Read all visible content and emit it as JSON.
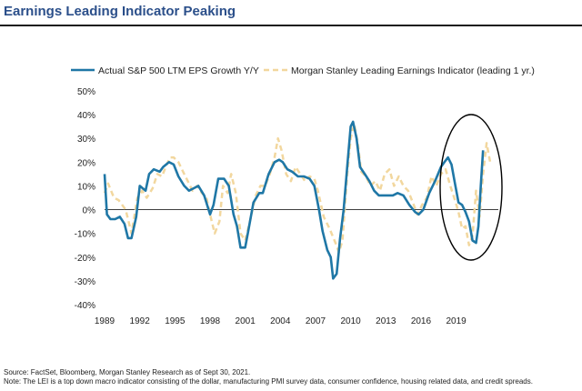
{
  "header": {
    "title": "Earnings Leading Indicator Peaking"
  },
  "colors": {
    "actual": "#1f77a6",
    "lei": "#f2d79e",
    "title": "#2b4f8a",
    "ellipse": "#000000"
  },
  "notes": {
    "source": "Source: FactSet, Bloomberg, Morgan Stanley Research as of Sept 30, 2021.",
    "note": "Note: The LEI is a top down macro indicator consisting of the dollar, manufacturing PMI survey data, consumer confidence, housing related data, and credit spreads."
  },
  "chart_data": {
    "type": "line",
    "title": "",
    "xlabel": "",
    "ylabel": "",
    "xlim": [
      1989,
      2022.6
    ],
    "ylim": [
      -40,
      50
    ],
    "x_ticks": [
      "1989",
      "1992",
      "1995",
      "1998",
      "2001",
      "2004",
      "2007",
      "2010",
      "2013",
      "2016",
      "2019"
    ],
    "x_tick_values": [
      1989,
      1992,
      1995,
      1998,
      2001,
      2004,
      2007,
      2010,
      2013,
      2016,
      2019
    ],
    "y_ticks": [
      "50%",
      "40%",
      "30%",
      "20%",
      "10%",
      "0%",
      "-10%",
      "-20%",
      "-30%",
      "-40%"
    ],
    "y_tick_values": [
      50,
      40,
      30,
      20,
      10,
      0,
      -10,
      -20,
      -30,
      -40
    ],
    "legend_position": "top",
    "annotation": "ellipse",
    "series": [
      {
        "name": "Actual S&P 500 LTM EPS Growth Y/Y",
        "style": "solid",
        "points": [
          [
            1989.0,
            15
          ],
          [
            1989.2,
            -2
          ],
          [
            1989.5,
            -4
          ],
          [
            1989.9,
            -4
          ],
          [
            1990.3,
            -3
          ],
          [
            1990.7,
            -6
          ],
          [
            1991.0,
            -12
          ],
          [
            1991.3,
            -12
          ],
          [
            1991.7,
            -3
          ],
          [
            1992.0,
            10
          ],
          [
            1992.5,
            8
          ],
          [
            1992.8,
            15
          ],
          [
            1993.2,
            17
          ],
          [
            1993.7,
            16
          ],
          [
            1994.0,
            18
          ],
          [
            1994.5,
            20
          ],
          [
            1994.9,
            19
          ],
          [
            1995.3,
            14
          ],
          [
            1995.8,
            10
          ],
          [
            1996.2,
            8
          ],
          [
            1996.6,
            9
          ],
          [
            1997.0,
            10
          ],
          [
            1997.5,
            6
          ],
          [
            1998.0,
            -2
          ],
          [
            1998.3,
            2
          ],
          [
            1998.7,
            13
          ],
          [
            1999.2,
            13
          ],
          [
            1999.6,
            10
          ],
          [
            2000.0,
            -2
          ],
          [
            2000.3,
            -7
          ],
          [
            2000.6,
            -16
          ],
          [
            2001.0,
            -16
          ],
          [
            2001.3,
            -8
          ],
          [
            2001.7,
            3
          ],
          [
            2002.2,
            7
          ],
          [
            2002.5,
            7
          ],
          [
            2003.0,
            15
          ],
          [
            2003.5,
            20
          ],
          [
            2003.9,
            21
          ],
          [
            2004.2,
            20
          ],
          [
            2004.6,
            17
          ],
          [
            2005.0,
            16
          ],
          [
            2005.5,
            14
          ],
          [
            2006.0,
            14
          ],
          [
            2006.5,
            13
          ],
          [
            2006.9,
            10
          ],
          [
            2007.3,
            0
          ],
          [
            2007.6,
            -9
          ],
          [
            2008.0,
            -17
          ],
          [
            2008.3,
            -20
          ],
          [
            2008.5,
            -29
          ],
          [
            2008.8,
            -27
          ],
          [
            2009.1,
            -12
          ],
          [
            2009.4,
            0
          ],
          [
            2009.7,
            18
          ],
          [
            2010.0,
            35
          ],
          [
            2010.2,
            37
          ],
          [
            2010.5,
            30
          ],
          [
            2010.8,
            18
          ],
          [
            2011.2,
            15
          ],
          [
            2011.6,
            12
          ],
          [
            2012.0,
            8
          ],
          [
            2012.4,
            6
          ],
          [
            2012.8,
            6
          ],
          [
            2013.2,
            6
          ],
          [
            2013.6,
            6
          ],
          [
            2014.0,
            7
          ],
          [
            2014.5,
            6
          ],
          [
            2015.0,
            2
          ],
          [
            2015.5,
            -1
          ],
          [
            2015.8,
            -2
          ],
          [
            2016.2,
            0
          ],
          [
            2016.7,
            7
          ],
          [
            2017.2,
            12
          ],
          [
            2017.7,
            18
          ],
          [
            2018.0,
            20
          ],
          [
            2018.3,
            22
          ],
          [
            2018.6,
            19
          ],
          [
            2018.9,
            11
          ],
          [
            2019.2,
            3
          ],
          [
            2019.5,
            2
          ],
          [
            2019.8,
            -1
          ],
          [
            2020.1,
            -5
          ],
          [
            2020.4,
            -13
          ],
          [
            2020.7,
            -14
          ],
          [
            2020.9,
            -7
          ],
          [
            2021.1,
            10
          ],
          [
            2021.3,
            25
          ]
        ]
      },
      {
        "name": "Morgan Stanley Leading Earnings Indicator (leading 1 yr.)",
        "style": "dashed",
        "points": [
          [
            1989.0,
            7
          ],
          [
            1989.3,
            11
          ],
          [
            1989.8,
            5
          ],
          [
            1990.2,
            4
          ],
          [
            1990.8,
            0
          ],
          [
            1991.3,
            -10
          ],
          [
            1991.8,
            5
          ],
          [
            1992.2,
            8
          ],
          [
            1992.6,
            5
          ],
          [
            1993.1,
            9
          ],
          [
            1993.5,
            15
          ],
          [
            1993.9,
            14
          ],
          [
            1994.3,
            19
          ],
          [
            1994.6,
            22
          ],
          [
            1994.9,
            22
          ],
          [
            1995.3,
            20
          ],
          [
            1995.7,
            16
          ],
          [
            1996.1,
            12
          ],
          [
            1996.5,
            8
          ],
          [
            1996.9,
            10
          ],
          [
            1997.3,
            7
          ],
          [
            1997.7,
            5
          ],
          [
            1998.0,
            -2
          ],
          [
            1998.4,
            -10
          ],
          [
            1998.8,
            -5
          ],
          [
            1999.1,
            10
          ],
          [
            1999.5,
            7
          ],
          [
            1999.8,
            15
          ],
          [
            2000.2,
            7
          ],
          [
            2000.6,
            -10
          ],
          [
            2001.0,
            -13
          ],
          [
            2001.4,
            -5
          ],
          [
            2001.9,
            6
          ],
          [
            2002.3,
            10
          ],
          [
            2002.7,
            10
          ],
          [
            2003.1,
            15
          ],
          [
            2003.5,
            22
          ],
          [
            2003.8,
            30
          ],
          [
            2004.1,
            25
          ],
          [
            2004.5,
            15
          ],
          [
            2004.9,
            12
          ],
          [
            2005.3,
            18
          ],
          [
            2005.7,
            15
          ],
          [
            2006.1,
            12
          ],
          [
            2006.5,
            14
          ],
          [
            2006.9,
            13
          ],
          [
            2007.2,
            8
          ],
          [
            2007.7,
            -3
          ],
          [
            2008.2,
            -8
          ],
          [
            2008.7,
            -14
          ],
          [
            2009.0,
            -18
          ],
          [
            2009.3,
            -13
          ],
          [
            2009.7,
            15
          ],
          [
            2010.0,
            30
          ],
          [
            2010.3,
            36
          ],
          [
            2010.6,
            28
          ],
          [
            2010.9,
            16
          ],
          [
            2011.3,
            14
          ],
          [
            2011.7,
            10
          ],
          [
            2012.1,
            12
          ],
          [
            2012.5,
            8
          ],
          [
            2012.9,
            15
          ],
          [
            2013.3,
            17
          ],
          [
            2013.7,
            10
          ],
          [
            2014.1,
            14
          ],
          [
            2014.5,
            10
          ],
          [
            2014.9,
            8
          ],
          [
            2015.3,
            3
          ],
          [
            2015.7,
            -2
          ],
          [
            2016.1,
            2
          ],
          [
            2016.5,
            5
          ],
          [
            2016.9,
            14
          ],
          [
            2017.3,
            10
          ],
          [
            2017.7,
            15
          ],
          [
            2018.1,
            17
          ],
          [
            2018.5,
            10
          ],
          [
            2018.9,
            4
          ],
          [
            2019.2,
            -1
          ],
          [
            2019.5,
            -8
          ],
          [
            2019.8,
            -7
          ],
          [
            2020.1,
            -15
          ],
          [
            2020.4,
            -11
          ],
          [
            2020.7,
            8
          ],
          [
            2021.0,
            -3
          ],
          [
            2021.3,
            15
          ],
          [
            2021.6,
            28
          ],
          [
            2021.9,
            20
          ]
        ]
      }
    ]
  }
}
